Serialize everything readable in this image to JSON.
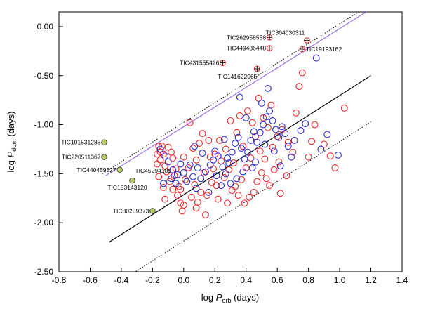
{
  "chart_data": {
    "type": "scatter",
    "xlabel": {
      "prefix": "log ",
      "symbol": "P",
      "sub": "orb",
      "suffix": " (days)"
    },
    "ylabel": {
      "prefix": "log ",
      "symbol": "P",
      "sub": "dom",
      "suffix": " (days)"
    },
    "xlim": [
      -0.8,
      1.4
    ],
    "ylim": [
      -2.5,
      0.15
    ],
    "xticks": [
      "-0.8",
      "-0.6",
      "-0.4",
      "-0.2",
      "0.0",
      "0.2",
      "0.4",
      "0.6",
      "0.8",
      "1.0",
      "1.2",
      "1.4"
    ],
    "yticks": [
      "0.00",
      "-0.50",
      "-1.00",
      "-1.50",
      "-2.00",
      "-2.50"
    ],
    "grid": false,
    "legend": "none",
    "colors": {
      "red": "#e8262a",
      "blue": "#2a2ac8",
      "purple": "#a070e0",
      "green_fill": "#b7cf62",
      "black": "#000000"
    },
    "lines": [
      {
        "style": "solid",
        "color": "#000000",
        "points": [
          [
            -0.48,
            -2.2
          ],
          [
            1.2,
            -0.5
          ]
        ]
      },
      {
        "style": "dotted",
        "color": "#000000",
        "points": [
          [
            -0.52,
            -1.5
          ],
          [
            1.2,
            0.23
          ]
        ]
      },
      {
        "style": "dotted",
        "color": "#000000",
        "points": [
          [
            -0.32,
            -2.51
          ],
          [
            1.2,
            -0.97
          ]
        ]
      },
      {
        "style": "solid",
        "color": "#a070e0",
        "points": [
          [
            -0.5,
            -1.52
          ],
          [
            1.2,
            0.18
          ]
        ]
      }
    ],
    "labeled_points": [
      {
        "name": "TIC304030311",
        "x": 0.79,
        "y": -0.14,
        "style": "plus",
        "color": "#e8262a"
      },
      {
        "name": "TIC262958558",
        "x": 0.55,
        "y": -0.11,
        "style": "plus",
        "color": "#e8262a"
      },
      {
        "name": "TIC449486448",
        "x": 0.55,
        "y": -0.22,
        "style": "plus",
        "color": "#e8262a"
      },
      {
        "name": "TIC19193162",
        "x": 0.76,
        "y": -0.23,
        "style": "plus",
        "color": "#e8262a"
      },
      {
        "name": "TIC431555426",
        "x": 0.25,
        "y": -0.37,
        "style": "plus",
        "color": "#e8262a"
      },
      {
        "name": "TIC141622065",
        "x": 0.47,
        "y": -0.43,
        "style": "plus",
        "color": "#e8262a"
      },
      {
        "name": "TIC101531285",
        "x": -0.51,
        "y": -1.18,
        "style": "filled",
        "color": "#b7cf62"
      },
      {
        "name": "TIC220511367",
        "x": -0.51,
        "y": -1.33,
        "style": "filled",
        "color": "#b7cf62"
      },
      {
        "name": "TIC440459327",
        "x": -0.41,
        "y": -1.46,
        "style": "filled",
        "color": "#b7cf62"
      },
      {
        "name": "TIC45294109",
        "x": -0.33,
        "y": -1.57,
        "style": "filled",
        "color": "#b7cf62"
      },
      {
        "name": "TIC183143120",
        "x": -0.33,
        "y": -1.57,
        "style": "filled",
        "color": "#b7cf62"
      },
      {
        "name": "TIC80259373",
        "x": -0.2,
        "y": -1.88,
        "style": "filled",
        "color": "#b7cf62"
      }
    ],
    "series": [
      {
        "color": "#e8262a",
        "points": [
          [
            -0.16,
            -1.22
          ],
          [
            -0.14,
            -1.22
          ],
          [
            -0.15,
            -1.28
          ],
          [
            -0.17,
            -1.3
          ],
          [
            -0.13,
            -1.3
          ],
          [
            -0.1,
            -1.23
          ],
          [
            -0.08,
            -1.28
          ],
          [
            -0.15,
            -1.36
          ],
          [
            -0.17,
            -1.4
          ],
          [
            -0.12,
            -1.42
          ],
          [
            -0.07,
            -1.34
          ],
          [
            -0.05,
            -1.45
          ],
          [
            -0.11,
            -1.48
          ],
          [
            -0.16,
            -1.53
          ],
          [
            -0.09,
            -1.58
          ],
          [
            -0.13,
            -1.64
          ],
          [
            -0.07,
            -1.66
          ],
          [
            -0.04,
            -1.72
          ],
          [
            -0.12,
            -1.76
          ],
          [
            -0.02,
            -1.8
          ],
          [
            0.04,
            -0.98
          ],
          [
            0.12,
            -1.09
          ],
          [
            0.16,
            -1.16
          ],
          [
            0.1,
            -1.19
          ],
          [
            0.06,
            -1.24
          ],
          [
            0.0,
            -1.33
          ],
          [
            0.08,
            -1.36
          ],
          [
            0.03,
            -1.44
          ],
          [
            0.13,
            -1.49
          ],
          [
            0.01,
            -1.56
          ],
          [
            0.07,
            -1.61
          ],
          [
            -0.02,
            -1.66
          ],
          [
            0.11,
            -1.69
          ],
          [
            0.05,
            -1.74
          ],
          [
            0.0,
            -1.82
          ],
          [
            0.08,
            -1.85
          ],
          [
            -0.01,
            -1.88
          ],
          [
            0.15,
            -1.72
          ],
          [
            0.18,
            -1.59
          ],
          [
            0.2,
            -1.3
          ],
          [
            0.23,
            -1.16
          ],
          [
            0.27,
            -1.25
          ],
          [
            0.24,
            -1.37
          ],
          [
            0.29,
            -1.46
          ],
          [
            0.26,
            -1.54
          ],
          [
            0.21,
            -1.62
          ],
          [
            0.31,
            -1.67
          ],
          [
            0.28,
            -1.8
          ],
          [
            0.35,
            -1.72
          ],
          [
            0.33,
            -1.63
          ],
          [
            0.37,
            -1.56
          ],
          [
            0.4,
            -1.44
          ],
          [
            0.43,
            -1.34
          ],
          [
            0.38,
            -1.22
          ],
          [
            0.34,
            -1.08
          ],
          [
            0.3,
            -0.96
          ],
          [
            0.36,
            -0.91
          ],
          [
            0.41,
            -0.86
          ],
          [
            0.44,
            -0.98
          ],
          [
            0.46,
            -1.12
          ],
          [
            0.49,
            -1.27
          ],
          [
            0.52,
            -1.35
          ],
          [
            0.5,
            -1.49
          ],
          [
            0.47,
            -1.58
          ],
          [
            0.55,
            -1.62
          ],
          [
            0.58,
            -1.46
          ],
          [
            0.61,
            -1.38
          ],
          [
            0.57,
            -1.23
          ],
          [
            0.6,
            -1.12
          ],
          [
            0.54,
            -1.03
          ],
          [
            0.51,
            -0.93
          ],
          [
            0.56,
            -0.8
          ],
          [
            0.48,
            -0.73
          ],
          [
            0.63,
            -1.05
          ],
          [
            0.67,
            -1.18
          ],
          [
            0.7,
            -1.28
          ],
          [
            0.62,
            -1.7
          ],
          [
            0.66,
            -1.52
          ],
          [
            0.72,
            -0.88
          ],
          [
            0.74,
            -0.61
          ],
          [
            0.76,
            -0.47
          ],
          [
            0.8,
            -1.33
          ],
          [
            0.82,
            -1.17
          ],
          [
            0.84,
            -1.0
          ],
          [
            0.9,
            -1.2
          ],
          [
            0.94,
            -1.32
          ],
          [
            0.97,
            -1.44
          ],
          [
            1.03,
            -0.83
          ],
          [
            0.42,
            -1.74
          ],
          [
            0.39,
            -1.8
          ],
          [
            0.45,
            -1.69
          ],
          [
            0.53,
            -1.55
          ],
          [
            0.19,
            -1.45
          ],
          [
            0.22,
            -1.76
          ],
          [
            0.14,
            -1.92
          ],
          [
            0.09,
            -1.79
          ],
          [
            -0.06,
            -1.52
          ],
          [
            -0.03,
            -1.63
          ],
          [
            0.32,
            -1.39
          ],
          [
            0.17,
            -1.33
          ]
        ]
      },
      {
        "color": "#2a2ac8",
        "points": [
          [
            -0.15,
            -1.25
          ],
          [
            -0.12,
            -1.32
          ],
          [
            -0.1,
            -1.38
          ],
          [
            -0.07,
            -1.46
          ],
          [
            -0.04,
            -1.51
          ],
          [
            -0.08,
            -1.55
          ],
          [
            0.0,
            -1.49
          ],
          [
            0.02,
            -1.58
          ],
          [
            0.06,
            -1.53
          ],
          [
            0.09,
            -1.44
          ],
          [
            0.11,
            -1.55
          ],
          [
            0.14,
            -1.48
          ],
          [
            0.17,
            -1.41
          ],
          [
            0.19,
            -1.36
          ],
          [
            0.22,
            -1.32
          ],
          [
            0.25,
            -1.43
          ],
          [
            0.27,
            -1.5
          ],
          [
            0.29,
            -1.39
          ],
          [
            0.31,
            -1.28
          ],
          [
            0.33,
            -1.19
          ],
          [
            0.35,
            -1.13
          ],
          [
            0.37,
            -1.24
          ],
          [
            0.39,
            -1.35
          ],
          [
            0.41,
            -1.28
          ],
          [
            0.43,
            -1.16
          ],
          [
            0.45,
            -1.07
          ],
          [
            0.47,
            -1.18
          ],
          [
            0.49,
            -1.08
          ],
          [
            0.51,
            -1.0
          ],
          [
            0.53,
            -0.92
          ],
          [
            0.55,
            -0.86
          ],
          [
            0.57,
            -0.96
          ],
          [
            0.59,
            -1.05
          ],
          [
            0.61,
            -1.13
          ],
          [
            0.63,
            -1.02
          ],
          [
            0.65,
            -1.09
          ],
          [
            0.67,
            -1.22
          ],
          [
            0.69,
            -1.33
          ],
          [
            0.71,
            -1.16
          ],
          [
            0.75,
            -1.06
          ],
          [
            0.78,
            -0.99
          ],
          [
            0.85,
            -0.32
          ],
          [
            0.88,
            -1.25
          ],
          [
            0.92,
            -1.1
          ],
          [
            0.99,
            -1.31
          ],
          [
            0.54,
            -0.63
          ],
          [
            0.5,
            -0.78
          ],
          [
            0.36,
            -0.72
          ],
          [
            0.4,
            -0.93
          ],
          [
            0.46,
            -1.38
          ],
          [
            0.34,
            -1.55
          ],
          [
            0.24,
            -1.62
          ],
          [
            0.16,
            -1.69
          ],
          [
            0.12,
            -1.29
          ],
          [
            0.04,
            -1.41
          ],
          [
            0.07,
            -1.22
          ],
          [
            -0.02,
            -1.4
          ],
          [
            0.26,
            -1.15
          ],
          [
            0.3,
            -1.6
          ],
          [
            0.38,
            -1.48
          ],
          [
            0.44,
            -1.44
          ],
          [
            0.52,
            -1.2
          ],
          [
            0.58,
            -1.27
          ],
          [
            0.62,
            -1.42
          ],
          [
            0.2,
            -1.27
          ],
          [
            -0.05,
            -1.6
          ],
          [
            -0.13,
            -1.6
          ],
          [
            0.08,
            -1.65
          ],
          [
            0.21,
            -1.52
          ],
          [
            0.28,
            -1.34
          ]
        ]
      }
    ]
  }
}
